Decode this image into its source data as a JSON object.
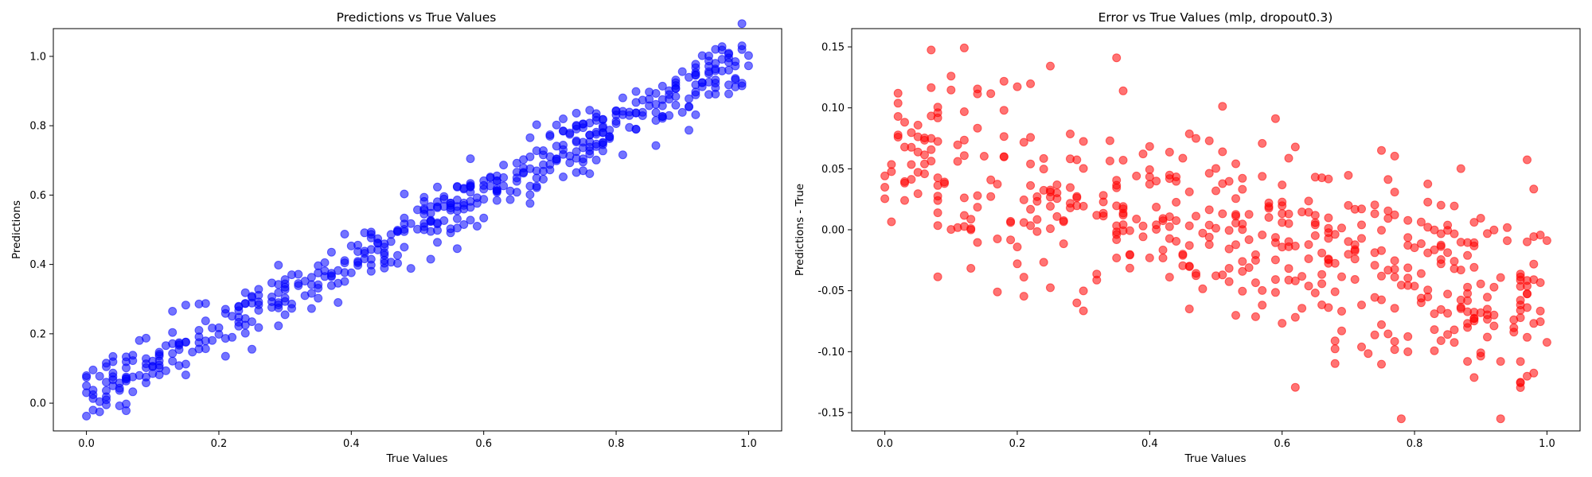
{
  "chart_data": [
    {
      "type": "scatter",
      "title": "Predictions vs True Values",
      "xlabel": "True Values",
      "ylabel": "Predictions",
      "xlim": [
        -0.05,
        1.05
      ],
      "ylim": [
        -0.08,
        1.08
      ],
      "xticks": [
        "0.0",
        "0.2",
        "0.4",
        "0.6",
        "0.8",
        "1.0"
      ],
      "yticks": [
        "0.0",
        "0.2",
        "0.4",
        "0.6",
        "0.8",
        "1.0"
      ],
      "grid": false,
      "color": "#0000ff",
      "alpha": 0.55,
      "generated_points": 500,
      "trend": "approximately y = x + noise (std ≈ 0.05)"
    },
    {
      "type": "scatter",
      "title": "Error vs True Values (mlp, dropout0.3)",
      "xlabel": "True Values",
      "ylabel": "Predictions - True",
      "xlim": [
        -0.05,
        1.05
      ],
      "ylim": [
        -0.165,
        0.165
      ],
      "xticks": [
        "0.0",
        "0.2",
        "0.4",
        "0.6",
        "0.8",
        "1.0"
      ],
      "yticks": [
        "-0.15",
        "-0.10",
        "-0.05",
        "0.00",
        "0.05",
        "0.10",
        "0.15"
      ],
      "grid": false,
      "color": "#ff0000",
      "alpha": 0.55,
      "generated_points": 500,
      "trend": "error decreases with true value (≈ 0.06 at x=0 to ≈ -0.06 at x=1)"
    }
  ]
}
